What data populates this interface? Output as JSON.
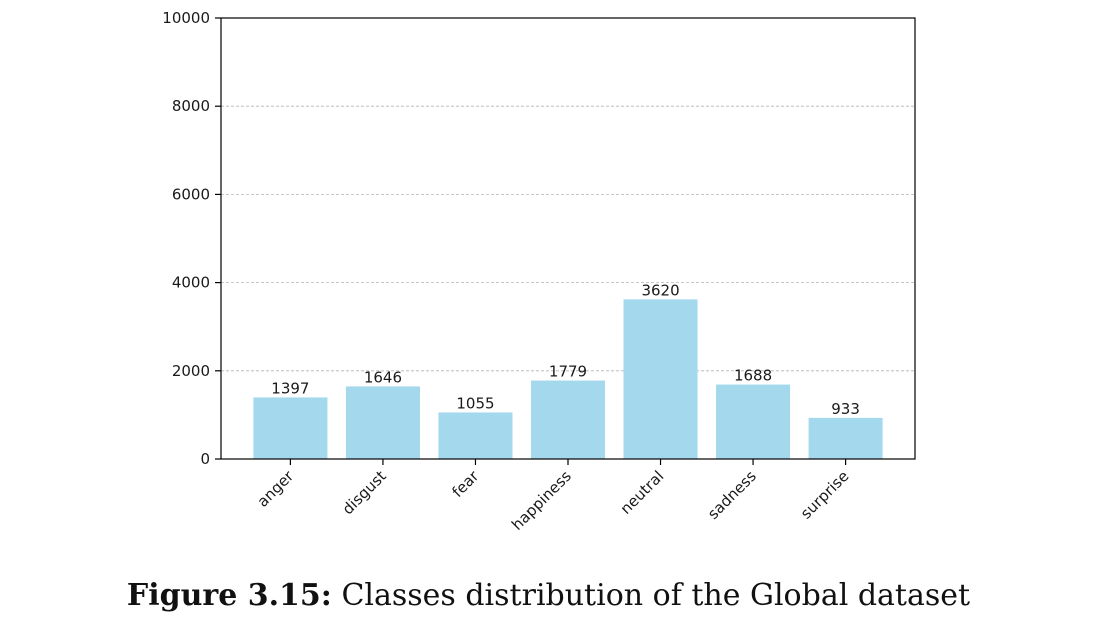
{
  "chart_data": {
    "type": "bar",
    "categories": [
      "anger",
      "disgust",
      "fear",
      "happiness",
      "neutral",
      "sadness",
      "surprise"
    ],
    "values": [
      1397,
      1646,
      1055,
      1779,
      3620,
      1688,
      933
    ],
    "data_labels": [
      "1397",
      "1646",
      "1055",
      "1779",
      "3620",
      "1688",
      "933"
    ],
    "ylim": [
      0,
      10000
    ],
    "yticks": [
      0,
      2000,
      4000,
      6000,
      8000,
      10000
    ],
    "ytick_labels": [
      "0",
      "2000",
      "4000",
      "6000",
      "8000",
      "10000"
    ],
    "grid": "y-dashed",
    "bar_color": "#a3d8ed",
    "title": "",
    "xlabel": "",
    "ylabel": ""
  },
  "caption": {
    "label": "Figure 3.15:",
    "text": "Classes distribution of the Global dataset"
  }
}
